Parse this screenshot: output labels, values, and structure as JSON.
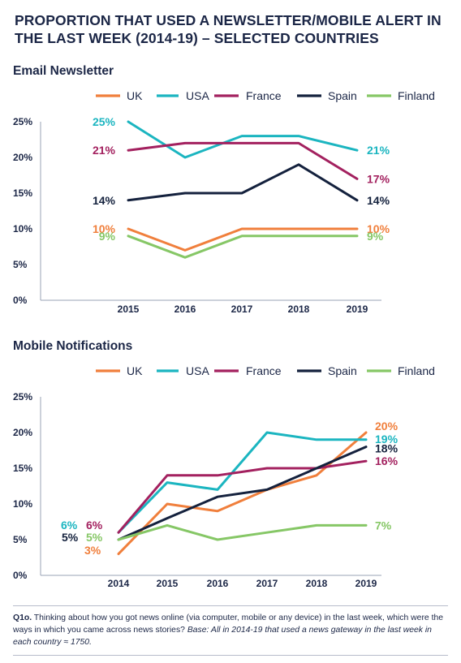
{
  "title": "PROPORTION THAT USED A NEWSLETTER/MOBILE ALERT IN THE LAST WEEK (2014-19) – SELECTED COUNTRIES",
  "footnote": {
    "label": "Q1o.",
    "question": " Thinking about how you got news online (via computer, mobile or any device) in the last week, which were the ways in which you came across news stories? ",
    "base": "Base: All in 2014-19 that used a news gateway in the last week in each country ≈ 1750."
  },
  "chart_data": [
    {
      "type": "line",
      "title": "Email Newsletter",
      "categories": [
        "2015",
        "2016",
        "2017",
        "2018",
        "2019"
      ],
      "ylim": [
        0,
        25
      ],
      "yticks": [
        "0%",
        "5%",
        "10%",
        "15%",
        "20%",
        "25%"
      ],
      "grid": false,
      "legend_position": "top",
      "series": [
        {
          "name": "UK",
          "color": "#f07f3c",
          "values": [
            10,
            7,
            10,
            10,
            10
          ],
          "start_label": "10%",
          "end_label": "10%"
        },
        {
          "name": "USA",
          "color": "#1bb5c0",
          "values": [
            25,
            20,
            23,
            23,
            21
          ],
          "start_label": "25%",
          "end_label": "21%"
        },
        {
          "name": "France",
          "color": "#a3215f",
          "values": [
            21,
            22,
            22,
            22,
            17
          ],
          "start_label": "21%",
          "end_label": "17%"
        },
        {
          "name": "Spain",
          "color": "#14213d",
          "values": [
            14,
            15,
            15,
            19,
            14
          ],
          "start_label": "14%",
          "end_label": "14%"
        },
        {
          "name": "Finland",
          "color": "#86c766",
          "values": [
            9,
            6,
            9,
            9,
            9
          ],
          "start_label": "9%",
          "end_label": "9%"
        }
      ]
    },
    {
      "type": "line",
      "title": "Mobile Notifications",
      "categories": [
        "2014",
        "2015",
        "2016",
        "2017",
        "2018",
        "2019"
      ],
      "ylim": [
        0,
        25
      ],
      "yticks": [
        "0%",
        "5%",
        "10%",
        "15%",
        "20%",
        "25%"
      ],
      "grid": false,
      "legend_position": "top",
      "series": [
        {
          "name": "UK",
          "color": "#f07f3c",
          "values": [
            3,
            10,
            9,
            12,
            14,
            20
          ],
          "start_label": "3%",
          "end_label": "20%"
        },
        {
          "name": "USA",
          "color": "#1bb5c0",
          "values": [
            6,
            13,
            12,
            20,
            19,
            19
          ],
          "start_label": "6%",
          "end_label": "19%"
        },
        {
          "name": "France",
          "color": "#a3215f",
          "values": [
            6,
            14,
            14,
            15,
            15,
            16
          ],
          "start_label": "6%",
          "end_label": "16%"
        },
        {
          "name": "Spain",
          "color": "#14213d",
          "values": [
            5,
            8,
            11,
            12,
            15,
            18
          ],
          "start_label": "5%",
          "end_label": "18%"
        },
        {
          "name": "Finland",
          "color": "#86c766",
          "values": [
            5,
            7,
            5,
            6,
            7,
            7
          ],
          "start_label": "5%",
          "end_label": "7%"
        }
      ]
    }
  ]
}
